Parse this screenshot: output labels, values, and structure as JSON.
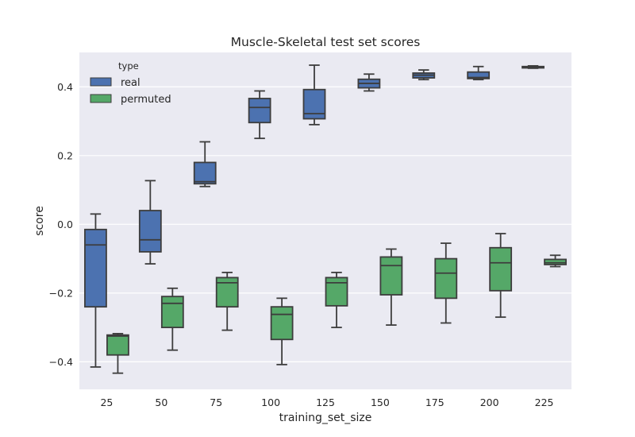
{
  "chart_data": {
    "type": "boxplot",
    "title": "Muscle-Skeletal test set scores",
    "xlabel": "training_set_size",
    "ylabel": "score",
    "categories": [
      "25",
      "50",
      "75",
      "100",
      "125",
      "150",
      "175",
      "200",
      "225"
    ],
    "ylim": [
      -0.48,
      0.5
    ],
    "yticks": [
      -0.4,
      -0.2,
      0.0,
      0.2,
      0.4
    ],
    "ytick_labels": [
      "−0.4",
      "−0.2",
      "0.0",
      "0.2",
      "0.4"
    ],
    "grid": true,
    "legend": {
      "title": "type",
      "placement": "top-left",
      "entries": [
        "real",
        "permuted"
      ]
    },
    "series": [
      {
        "name": "real",
        "color": "#4c72b0",
        "boxes": [
          {
            "whislo": -0.415,
            "q1": -0.24,
            "med": -0.06,
            "q3": -0.015,
            "whishi": 0.03
          },
          {
            "whislo": -0.115,
            "q1": -0.08,
            "med": -0.045,
            "q3": 0.04,
            "whishi": 0.127
          },
          {
            "whislo": 0.11,
            "q1": 0.118,
            "med": 0.124,
            "q3": 0.18,
            "whishi": 0.24
          },
          {
            "whislo": 0.25,
            "q1": 0.296,
            "med": 0.34,
            "q3": 0.366,
            "whishi": 0.388
          },
          {
            "whislo": 0.29,
            "q1": 0.307,
            "med": 0.322,
            "q3": 0.392,
            "whishi": 0.463
          },
          {
            "whislo": 0.388,
            "q1": 0.397,
            "med": 0.41,
            "q3": 0.422,
            "whishi": 0.437
          },
          {
            "whislo": 0.421,
            "q1": 0.426,
            "med": 0.434,
            "q3": 0.44,
            "whishi": 0.449
          },
          {
            "whislo": 0.421,
            "q1": 0.424,
            "med": 0.427,
            "q3": 0.443,
            "whishi": 0.459
          },
          {
            "whislo": 0.454,
            "q1": 0.455,
            "med": 0.457,
            "q3": 0.459,
            "whishi": 0.461
          }
        ]
      },
      {
        "name": "permuted",
        "color": "#55a868",
        "boxes": [
          {
            "whislo": -0.433,
            "q1": -0.38,
            "med": -0.325,
            "q3": -0.322,
            "whishi": -0.318
          },
          {
            "whislo": -0.366,
            "q1": -0.3,
            "med": -0.23,
            "q3": -0.21,
            "whishi": -0.186
          },
          {
            "whislo": -0.308,
            "q1": -0.24,
            "med": -0.17,
            "q3": -0.155,
            "whishi": -0.14
          },
          {
            "whislo": -0.408,
            "q1": -0.335,
            "med": -0.262,
            "q3": -0.24,
            "whishi": -0.215
          },
          {
            "whislo": -0.3,
            "q1": -0.237,
            "med": -0.17,
            "q3": -0.155,
            "whishi": -0.14
          },
          {
            "whislo": -0.293,
            "q1": -0.205,
            "med": -0.12,
            "q3": -0.095,
            "whishi": -0.072
          },
          {
            "whislo": -0.287,
            "q1": -0.215,
            "med": -0.142,
            "q3": -0.1,
            "whishi": -0.055
          },
          {
            "whislo": -0.27,
            "q1": -0.193,
            "med": -0.112,
            "q3": -0.068,
            "whishi": -0.027
          },
          {
            "whislo": -0.123,
            "q1": -0.117,
            "med": -0.112,
            "q3": -0.102,
            "whishi": -0.09
          }
        ]
      }
    ]
  }
}
